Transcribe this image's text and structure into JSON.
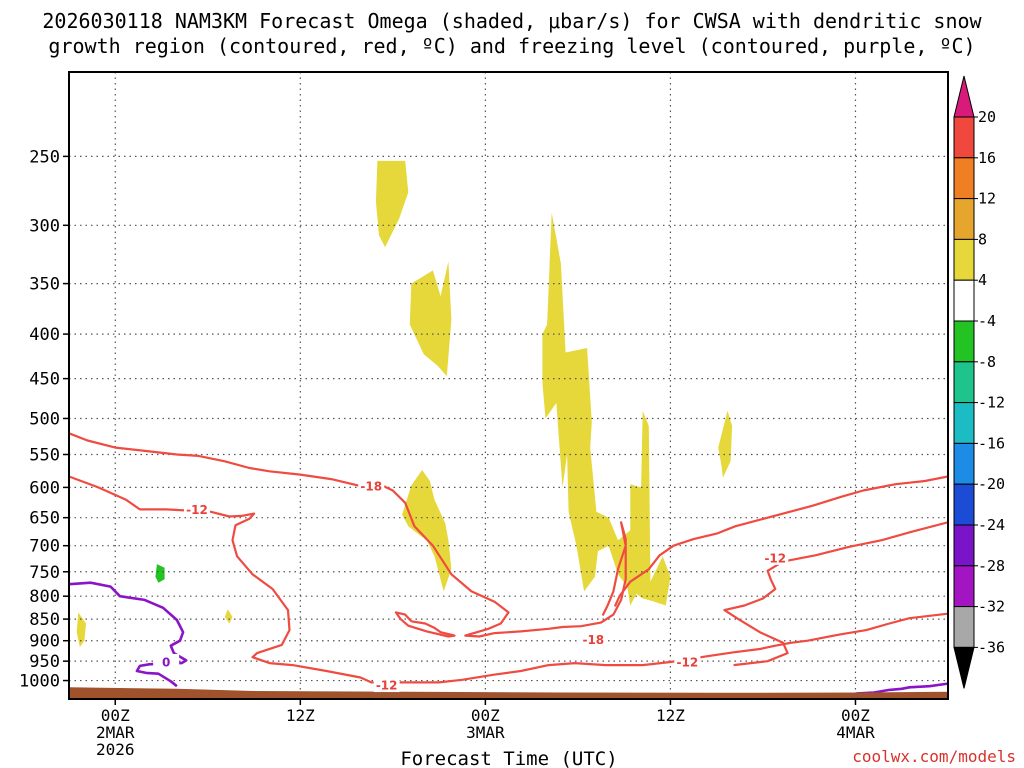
{
  "title_line1": "2026030118 NAM3KM Forecast Omega (shaded, μbar/s) for CWSA with dendritic snow",
  "title_line2": "growth region (contoured, red, ºC) and freezing level (contoured, purple, ºC)",
  "watermark": "coolwx.com/models",
  "colors": {
    "omega_fill": "#e6d83a",
    "omega_green": "#22c322",
    "dgz": "#ef4b41",
    "freezing": "#8a14c8",
    "terrain": "#a0522d",
    "grid": "#555555"
  },
  "chart_data": {
    "type": "contour",
    "xlabel": "Forecast Time (UTC)",
    "ylabel": "",
    "x_axis": {
      "ticks": [
        {
          "value": 6,
          "label": "00Z",
          "sub1": "2MAR",
          "sub2": "2026"
        },
        {
          "value": 18,
          "label": "12Z",
          "sub1": "",
          "sub2": ""
        },
        {
          "value": 30,
          "label": "00Z",
          "sub1": "3MAR",
          "sub2": ""
        },
        {
          "value": 42,
          "label": "12Z",
          "sub1": "",
          "sub2": ""
        },
        {
          "value": 54,
          "label": "00Z",
          "sub1": "4MAR",
          "sub2": ""
        }
      ],
      "range_hours": [
        3,
        60
      ]
    },
    "y_axis": {
      "ticks": [
        "250",
        "300",
        "350",
        "400",
        "450",
        "500",
        "550",
        "600",
        "650",
        "700",
        "750",
        "800",
        "850",
        "900",
        "950",
        "1000"
      ],
      "range_hpa": [
        1050,
        200
      ],
      "scale": "log-pressure"
    },
    "colorbar": {
      "labels": [
        "20",
        "16",
        "12",
        "8",
        "4",
        "-4",
        "-8",
        "-12",
        "-16",
        "-20",
        "-24",
        "-28",
        "-32",
        "-36"
      ],
      "colors": [
        "#d81b7a",
        "#f0483c",
        "#f07f23",
        "#e6a62d",
        "#e6d83a",
        "#ffffff",
        "#22c322",
        "#1ec48c",
        "#1cbcc4",
        "#1c8ce6",
        "#1c4cd6",
        "#7a14c8",
        "#a314c2",
        "#a8a8a8",
        "#000000"
      ]
    },
    "contour_labels": [
      {
        "text": "-18",
        "x": 22.6,
        "p": 598
      },
      {
        "text": "-12",
        "x": 11.3,
        "p": 636
      },
      {
        "text": "-12",
        "x": 23.6,
        "p": 1012
      },
      {
        "text": "-18",
        "x": 37.0,
        "p": 897
      },
      {
        "text": "-12",
        "x": 43.1,
        "p": 952
      },
      {
        "text": "-12",
        "x": 48.8,
        "p": 723
      },
      {
        "text": "0",
        "x": 9.3,
        "p": 952
      }
    ],
    "omega_regions": [
      {
        "level": "4",
        "points": [
          [
            23.0,
            253
          ],
          [
            24.8,
            253
          ],
          [
            25.0,
            275
          ],
          [
            24.4,
            295
          ],
          [
            23.5,
            318
          ],
          [
            23.1,
            308
          ],
          [
            22.9,
            282
          ]
        ]
      },
      {
        "level": "4",
        "points": [
          [
            25.2,
            350
          ],
          [
            26.6,
            338
          ],
          [
            27.1,
            362
          ],
          [
            27.6,
            330
          ],
          [
            27.8,
            385
          ],
          [
            27.5,
            447
          ],
          [
            26.9,
            435
          ],
          [
            26.0,
            422
          ],
          [
            25.1,
            390
          ]
        ]
      },
      {
        "level": "4",
        "points": [
          [
            34.3,
            290
          ],
          [
            34.9,
            332
          ],
          [
            35.2,
            420
          ],
          [
            36.6,
            415
          ],
          [
            36.9,
            505
          ],
          [
            36.8,
            540
          ],
          [
            37.2,
            640
          ],
          [
            38.0,
            650
          ],
          [
            38.6,
            690
          ],
          [
            39.4,
            672
          ],
          [
            39.4,
            595
          ],
          [
            40.1,
            600
          ],
          [
            40.2,
            490
          ],
          [
            40.6,
            510
          ],
          [
            40.7,
            770
          ],
          [
            41.5,
            720
          ],
          [
            42.0,
            760
          ],
          [
            41.7,
            820
          ],
          [
            40.8,
            810
          ],
          [
            40.2,
            805
          ],
          [
            39.8,
            795
          ],
          [
            39.4,
            820
          ],
          [
            39.2,
            780
          ],
          [
            38.6,
            755
          ],
          [
            38.0,
            700
          ],
          [
            37.3,
            710
          ],
          [
            37.1,
            760
          ],
          [
            36.4,
            790
          ],
          [
            35.9,
            700
          ],
          [
            35.4,
            640
          ],
          [
            35.3,
            550
          ],
          [
            35.0,
            600
          ],
          [
            34.6,
            480
          ],
          [
            33.9,
            500
          ],
          [
            33.7,
            455
          ],
          [
            33.7,
            400
          ],
          [
            34.0,
            390
          ]
        ]
      },
      {
        "level": "4",
        "points": [
          [
            24.6,
            645
          ],
          [
            25.2,
            597
          ],
          [
            25.9,
            573
          ],
          [
            26.4,
            590
          ],
          [
            26.7,
            620
          ],
          [
            27.4,
            660
          ],
          [
            27.6,
            690
          ],
          [
            27.8,
            745
          ],
          [
            27.3,
            790
          ],
          [
            26.7,
            720
          ],
          [
            26.2,
            690
          ],
          [
            25.7,
            680
          ],
          [
            25.0,
            665
          ]
        ]
      },
      {
        "level": "4",
        "points": [
          [
            45.7,
            490
          ],
          [
            46.0,
            510
          ],
          [
            45.9,
            560
          ],
          [
            45.4,
            585
          ],
          [
            45.3,
            565
          ],
          [
            45.1,
            540
          ]
        ]
      },
      {
        "level": "4",
        "points": [
          [
            3.6,
            835
          ],
          [
            4.1,
            860
          ],
          [
            4.0,
            900
          ],
          [
            3.7,
            915
          ],
          [
            3.5,
            880
          ]
        ]
      },
      {
        "level": "4",
        "points": [
          [
            13.3,
            828
          ],
          [
            13.6,
            845
          ],
          [
            13.4,
            860
          ],
          [
            13.1,
            845
          ]
        ]
      },
      {
        "level": "-4",
        "points": [
          [
            8.7,
            735
          ],
          [
            9.2,
            742
          ],
          [
            9.2,
            765
          ],
          [
            8.8,
            772
          ],
          [
            8.6,
            760
          ]
        ]
      }
    ],
    "dgz_contours": [
      {
        "level": -18,
        "points": [
          [
            3,
            520
          ],
          [
            4.2,
            530
          ],
          [
            6,
            540
          ],
          [
            8,
            545
          ],
          [
            10,
            550
          ],
          [
            11.4,
            552
          ],
          [
            13.1,
            560
          ],
          [
            14.7,
            570
          ],
          [
            16,
            575
          ],
          [
            18,
            580
          ],
          [
            20,
            587
          ],
          [
            21.9,
            598
          ],
          [
            23.4,
            598
          ],
          [
            24.0,
            605
          ],
          [
            24.8,
            625
          ],
          [
            25.4,
            665
          ],
          [
            26.6,
            700
          ],
          [
            27.8,
            755
          ],
          [
            29.1,
            790
          ],
          [
            30.6,
            812
          ],
          [
            31.5,
            835
          ],
          [
            31.0,
            860
          ],
          [
            30.2,
            872
          ],
          [
            28.7,
            888
          ],
          [
            29.6,
            890
          ],
          [
            30.6,
            882
          ],
          [
            32.3,
            878
          ],
          [
            34.1,
            872
          ],
          [
            35.0,
            868
          ],
          [
            36.2,
            866
          ],
          [
            37.5,
            858
          ],
          [
            38.3,
            840
          ],
          [
            38.8,
            808
          ],
          [
            39.1,
            765
          ],
          [
            39.1,
            725
          ],
          [
            39.1,
            688
          ],
          [
            38.8,
            658
          ],
          [
            39.1,
            700
          ],
          [
            38.6,
            745
          ],
          [
            38.3,
            790
          ],
          [
            37.9,
            822
          ],
          [
            37.6,
            842
          ]
        ]
      },
      {
        "level": -12,
        "points": [
          [
            3,
            583
          ],
          [
            4.9,
            600
          ],
          [
            6.7,
            620
          ],
          [
            7.6,
            636
          ],
          [
            9.3,
            636
          ],
          [
            10.8,
            638
          ],
          [
            12.2,
            640
          ],
          [
            13.4,
            648
          ],
          [
            14.2,
            647
          ],
          [
            15.0,
            643
          ],
          [
            14.7,
            652
          ],
          [
            13.8,
            663
          ],
          [
            13.6,
            690
          ],
          [
            13.9,
            720
          ],
          [
            14.9,
            755
          ],
          [
            16.2,
            785
          ],
          [
            17.2,
            830
          ],
          [
            17.3,
            875
          ],
          [
            16.8,
            910
          ],
          [
            15.2,
            930
          ],
          [
            14.9,
            940
          ],
          [
            16.0,
            955
          ],
          [
            17.5,
            960
          ],
          [
            19.7,
            975
          ],
          [
            21.9,
            992
          ],
          [
            22.6,
            1005
          ],
          [
            25.5,
            1005
          ],
          [
            27.0,
            1005
          ],
          [
            28.5,
            998
          ],
          [
            30.5,
            985
          ],
          [
            32.3,
            975
          ],
          [
            34.1,
            960
          ],
          [
            35.8,
            955
          ],
          [
            37.8,
            960
          ],
          [
            40.2,
            960
          ],
          [
            42.0,
            952
          ],
          [
            44.3,
            938
          ],
          [
            46.1,
            928
          ],
          [
            47.8,
            920
          ],
          [
            48.8,
            912
          ],
          [
            49.8,
            905
          ],
          [
            50.9,
            900
          ],
          [
            53.0,
            885
          ],
          [
            54.7,
            875
          ],
          [
            56.2,
            860
          ],
          [
            57.5,
            848
          ],
          [
            60,
            838
          ]
        ]
      },
      {
        "level": -12,
        "points": [
          [
            38.4,
            822
          ],
          [
            38.7,
            800
          ],
          [
            39.4,
            770
          ],
          [
            40.6,
            745
          ],
          [
            41.3,
            718
          ],
          [
            42.2,
            700
          ],
          [
            43.5,
            688
          ],
          [
            45.0,
            678
          ],
          [
            46.2,
            665
          ],
          [
            48.3,
            650
          ],
          [
            51.2,
            630
          ],
          [
            53.1,
            615
          ],
          [
            54.5,
            605
          ],
          [
            56.6,
            595
          ],
          [
            58.5,
            590
          ],
          [
            60,
            583
          ]
        ]
      },
      {
        "level": -12,
        "points": [
          [
            60,
            658
          ],
          [
            57.6,
            675
          ],
          [
            55.7,
            690
          ],
          [
            53.6,
            702
          ],
          [
            51.4,
            718
          ],
          [
            49.3,
            730
          ],
          [
            48.3,
            748
          ],
          [
            48.5,
            765
          ],
          [
            48.8,
            785
          ],
          [
            48.0,
            805
          ],
          [
            46.8,
            820
          ],
          [
            45.5,
            830
          ],
          [
            46.4,
            850
          ],
          [
            47.8,
            880
          ],
          [
            49.3,
            905
          ],
          [
            49.6,
            930
          ],
          [
            48.3,
            950
          ],
          [
            46.1,
            960
          ]
        ]
      },
      {
        "level": -18,
        "points": [
          [
            25.2,
            855
          ],
          [
            24.8,
            840
          ],
          [
            24.2,
            835
          ],
          [
            24.5,
            850
          ],
          [
            25.0,
            865
          ],
          [
            26.2,
            878
          ],
          [
            27.6,
            890
          ],
          [
            28.0,
            888
          ],
          [
            27.1,
            880
          ],
          [
            26.7,
            870
          ],
          [
            26.1,
            860
          ],
          [
            25.2,
            855
          ]
        ]
      }
    ],
    "freezing_contours": [
      {
        "level": 0,
        "points": [
          [
            3,
            775
          ],
          [
            4.4,
            772
          ],
          [
            5.7,
            780
          ],
          [
            6.3,
            800
          ],
          [
            7.9,
            808
          ],
          [
            9.1,
            825
          ],
          [
            10.0,
            852
          ],
          [
            10.4,
            880
          ],
          [
            10.2,
            900
          ],
          [
            9.6,
            912
          ],
          [
            9.8,
            930
          ],
          [
            10.6,
            948
          ],
          [
            10.3,
            955
          ],
          [
            9.4,
            955
          ],
          [
            8.2,
            958
          ],
          [
            7.6,
            962
          ],
          [
            7.4,
            975
          ],
          [
            8.0,
            980
          ],
          [
            8.8,
            982
          ],
          [
            9.6,
            1002
          ],
          [
            10.0,
            1015
          ]
        ]
      },
      {
        "level": 0,
        "points": [
          [
            54.0,
            1035
          ],
          [
            55.2,
            1032
          ],
          [
            56.2,
            1025
          ],
          [
            57.0,
            1022
          ],
          [
            57.5,
            1018
          ],
          [
            58.8,
            1015
          ],
          [
            60,
            1008
          ]
        ]
      }
    ],
    "terrain": {
      "surface_pressure": [
        [
          3,
          1018
        ],
        [
          10,
          1022
        ],
        [
          15,
          1028
        ],
        [
          25,
          1030
        ],
        [
          35,
          1032
        ],
        [
          45,
          1033
        ],
        [
          55,
          1032
        ],
        [
          60,
          1030
        ]
      ]
    }
  }
}
